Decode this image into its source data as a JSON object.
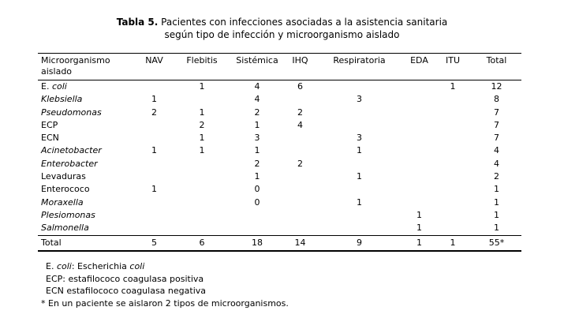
{
  "title": {
    "tag": "Tabla 5.",
    "line1_rest": " Pacientes con infecciones asociadas a la asistencia sanitaria",
    "line2": "según tipo de infección y microorganismo aislado"
  },
  "table": {
    "row_header": {
      "line1": "Microorganismo",
      "line2": "aislado"
    },
    "columns": [
      "NAV",
      "Flebitis",
      "Sistémica",
      "IHQ",
      "Respiratoria",
      "EDA",
      "ITU",
      "Total"
    ],
    "rows": [
      {
        "prefix": "E. ",
        "name": "coli",
        "italic": true,
        "values": [
          "",
          "1",
          "4",
          "6",
          "",
          "",
          "1",
          "12"
        ]
      },
      {
        "prefix": "",
        "name": "Klebsiella",
        "italic": true,
        "values": [
          "1",
          "",
          "4",
          "",
          "3",
          "",
          "",
          "8"
        ]
      },
      {
        "prefix": "",
        "name": "Pseudomonas",
        "italic": true,
        "values": [
          "2",
          "1",
          "2",
          "2",
          "",
          "",
          "",
          "7"
        ]
      },
      {
        "prefix": "",
        "name": "ECP",
        "italic": false,
        "values": [
          "",
          "2",
          "1",
          "4",
          "",
          "",
          "",
          "7"
        ]
      },
      {
        "prefix": "",
        "name": "ECN",
        "italic": false,
        "values": [
          "",
          "1",
          "3",
          "",
          "3",
          "",
          "",
          "7"
        ]
      },
      {
        "prefix": "",
        "name": "Acinetobacter",
        "italic": true,
        "values": [
          "1",
          "1",
          "1",
          "",
          "1",
          "",
          "",
          "4"
        ]
      },
      {
        "prefix": "",
        "name": "Enterobacter",
        "italic": true,
        "values": [
          "",
          "",
          "2",
          "2",
          "",
          "",
          "",
          "4"
        ]
      },
      {
        "prefix": "",
        "name": "Levaduras",
        "italic": false,
        "values": [
          "",
          "",
          "1",
          "",
          "1",
          "",
          "",
          "2"
        ]
      },
      {
        "prefix": "",
        "name": "Enterococo",
        "italic": false,
        "values": [
          "1",
          "",
          "0",
          "",
          "",
          "",
          "",
          "1"
        ]
      },
      {
        "prefix": "",
        "name": "Moraxella",
        "italic": true,
        "values": [
          "",
          "",
          "0",
          "",
          "1",
          "",
          "",
          "1"
        ]
      },
      {
        "prefix": "",
        "name": "Plesiomonas",
        "italic": true,
        "values": [
          "",
          "",
          "",
          "",
          "",
          "1",
          "",
          "1"
        ]
      },
      {
        "prefix": "",
        "name": "Salmonella",
        "italic": true,
        "values": [
          "",
          "",
          "",
          "",
          "",
          "1",
          "",
          "1"
        ]
      }
    ],
    "total_row": {
      "label": "Total",
      "values": [
        "5",
        "6",
        "18",
        "14",
        "9",
        "1",
        "1",
        "55*"
      ]
    }
  },
  "footnotes": [
    {
      "parts": [
        {
          "text": "E. "
        },
        {
          "text": "coli",
          "italic": true
        },
        {
          "text": ": Escherichia "
        },
        {
          "text": "coli",
          "italic": true
        }
      ]
    },
    {
      "parts": [
        {
          "text": "ECP: estafilococo coagulasa positiva"
        }
      ]
    },
    {
      "parts": [
        {
          "text": "ECN estafilococo coagulasa negativa"
        }
      ]
    },
    {
      "parts": [
        {
          "text": "* En un paciente se aislaron 2 tipos de microorganismos."
        }
      ]
    }
  ]
}
